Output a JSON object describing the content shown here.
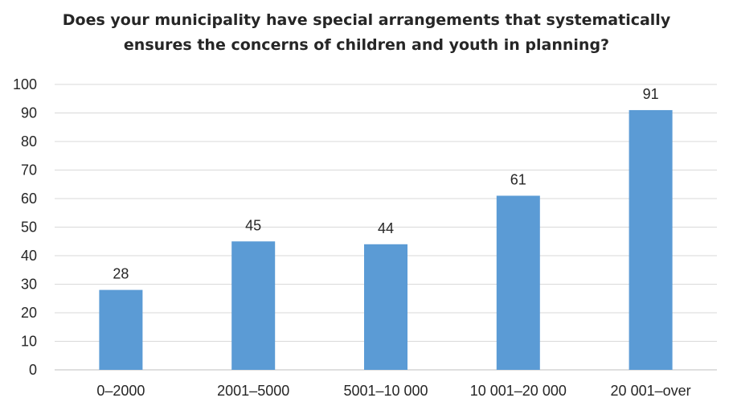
{
  "chart_data": {
    "type": "bar",
    "title": "Does your municipality have special arrangements that systematically ensures the concerns of children and youth in planning?",
    "title_lines": [
      "Does your municipality have special arrangements that systematically",
      "ensures the concerns of children and youth in planning?"
    ],
    "categories": [
      "0–2000",
      "2001–5000",
      "5001–10 000",
      "10 001–20 000",
      "20 001–over"
    ],
    "values": [
      28,
      45,
      44,
      61,
      91
    ],
    "xlabel": "",
    "ylabel": "",
    "ylim": [
      0,
      100
    ],
    "yticks": [
      0,
      10,
      20,
      30,
      40,
      50,
      60,
      70,
      80,
      90,
      100
    ],
    "grid": true,
    "data_labels": true,
    "colors": {
      "bar": "#5b9bd5",
      "grid": "#d9d9d9",
      "axis": "#bfbfbf"
    }
  }
}
